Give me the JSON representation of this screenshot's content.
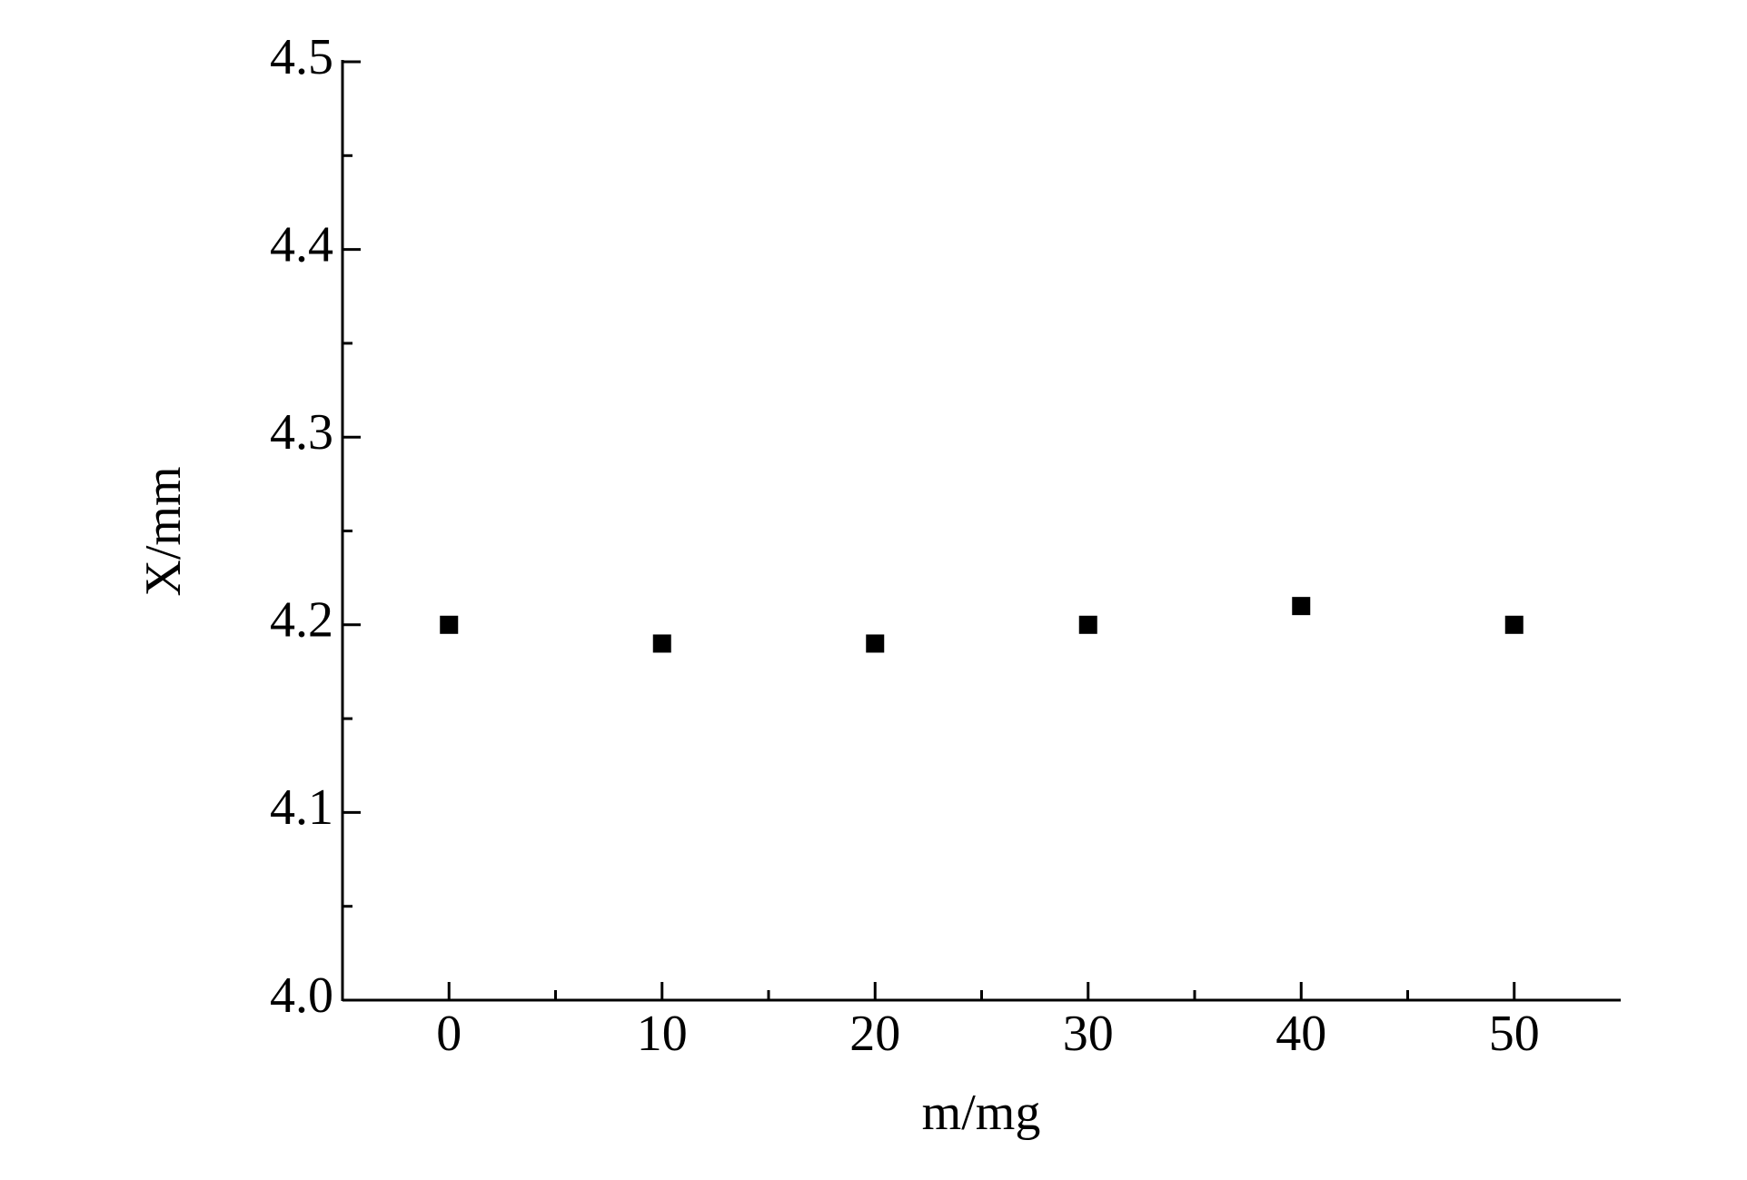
{
  "chart_data": {
    "type": "scatter",
    "x_label": "m/mg",
    "y_label": "X/mm",
    "series": [
      {
        "color": "#000000",
        "x": [
          0,
          10,
          20,
          30,
          40,
          50
        ],
        "values": [
          4.2,
          4.19,
          4.19,
          4.2,
          4.21,
          4.2
        ]
      }
    ],
    "xlim": [
      -5,
      55
    ],
    "xticks": [
      0,
      10,
      20,
      30,
      40,
      50
    ],
    "xminorticks": [
      5,
      15,
      25,
      35,
      45
    ],
    "ylim": [
      4.0,
      4.5
    ],
    "yticks": [
      {
        "value": 4,
        "label": "4.0"
      },
      4.1,
      4.2,
      4.3,
      4.4,
      4.5
    ],
    "yminorticks": [
      4.05,
      4.15,
      4.25,
      4.35,
      4.45
    ]
  }
}
